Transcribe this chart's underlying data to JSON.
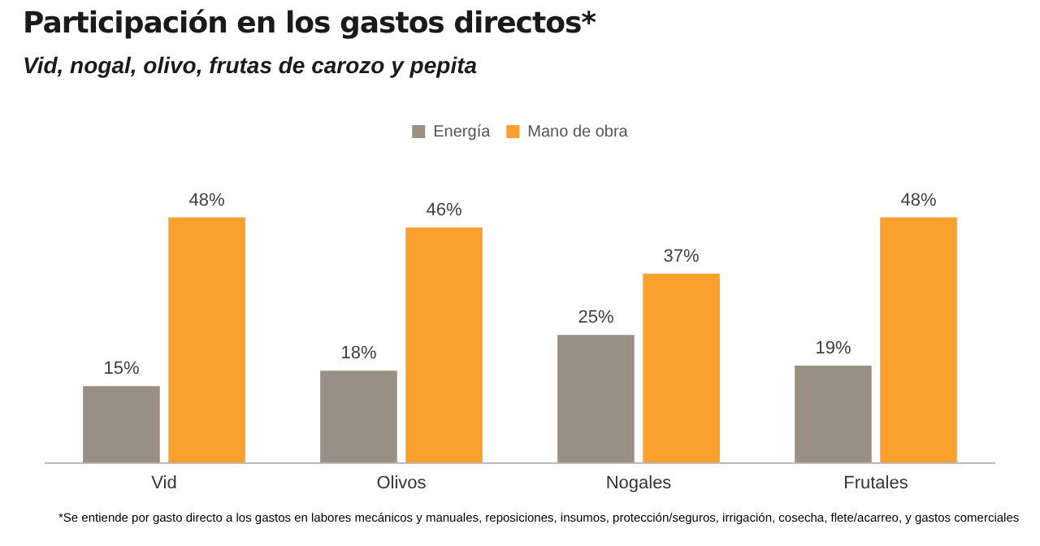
{
  "chart_data": {
    "type": "bar",
    "title": "Participación en los gastos directos*",
    "subtitle": "Vid, nogal, olivo, frutas de carozo y pepita",
    "categories": [
      "Vid",
      "Olivos",
      "Nogales",
      "Frutales"
    ],
    "series": [
      {
        "name": "Energía",
        "color": "#998f84",
        "values": [
          15,
          18,
          25,
          19
        ],
        "value_labels": [
          "15%",
          "18%",
          "25%",
          "19%"
        ]
      },
      {
        "name": "Mano de obra",
        "color": "#f9a12c",
        "values": [
          48,
          46,
          37,
          48
        ],
        "value_labels": [
          "48%",
          "46%",
          "37%",
          "48%"
        ]
      }
    ],
    "grid": false,
    "legend": "top",
    "tick_labels": "x",
    "annotations": [
      "*Se entiende por gasto directo a los gastos en labores mecánicos y manuales, reposiciones, insumos, protección/seguros, irrigación,  cosecha, flete/acarreo, y gastos comerciales"
    ]
  }
}
